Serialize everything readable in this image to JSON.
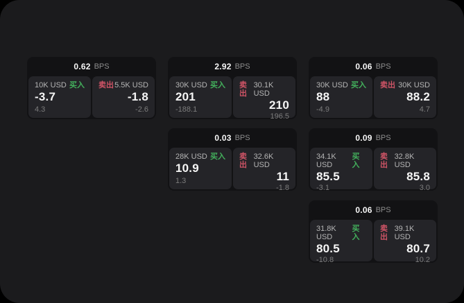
{
  "labels": {
    "bps_unit": "BPS",
    "buy": "买入",
    "sell": "卖出"
  },
  "colors": {
    "outer_background": "#000000",
    "panel_background": "#1b1b1d",
    "card_background": "#121214",
    "subpanel_background": "#242428",
    "text_primary": "#f5f5f5",
    "text_secondary": "#b5b5b5",
    "text_dim": "#7c7c7c",
    "buy_green": "#43b05c",
    "sell_red": "#cf5466"
  },
  "cards": [
    {
      "bps_value": "0.62",
      "buy_amount": "10K USD",
      "buy_value": "-3.7",
      "buy_delta": "4.3",
      "sell_amount": "5.5K USD",
      "sell_value": "-1.8",
      "sell_delta": "-2.6"
    },
    {
      "bps_value": "2.92",
      "buy_amount": "30K USD",
      "buy_value": "201",
      "buy_delta": "-188.1",
      "sell_amount": "30.1K USD",
      "sell_value": "210",
      "sell_delta": "196.5"
    },
    {
      "bps_value": "0.06",
      "buy_amount": "30K USD",
      "buy_value": "88",
      "buy_delta": "-4.9",
      "sell_amount": "30K USD",
      "sell_value": "88.2",
      "sell_delta": "4.7"
    },
    {
      "bps_value": "0.03",
      "buy_amount": "28K USD",
      "buy_value": "10.9",
      "buy_delta": "1.3",
      "sell_amount": "32.6K USD",
      "sell_value": "11",
      "sell_delta": "-1.8"
    },
    {
      "bps_value": "0.09",
      "buy_amount": "34.1K USD",
      "buy_value": "85.5",
      "buy_delta": "-3.1",
      "sell_amount": "32.8K USD",
      "sell_value": "85.8",
      "sell_delta": "3.0"
    },
    {
      "bps_value": "0.06",
      "buy_amount": "31.8K USD",
      "buy_value": "80.5",
      "buy_delta": "-10.8",
      "sell_amount": "39.1K USD",
      "sell_value": "80.7",
      "sell_delta": "10.2"
    }
  ]
}
